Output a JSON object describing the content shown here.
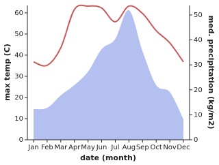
{
  "chart_data": {
    "type": "line",
    "x_label": "date (month)",
    "y_label": "max temp (C)",
    "y2_label": "med. precipitation (kg/m2)",
    "categories": [
      "Jan",
      "Feb",
      "Mar",
      "Apr",
      "May",
      "Jun",
      "Jul",
      "Aug",
      "Sep",
      "Oct",
      "Nov",
      "Dec"
    ],
    "series": [
      {
        "name": "max temp",
        "color": "#c85a5a",
        "values": [
          36.8,
          35.2,
          43.5,
          61.6,
          63.2,
          62.3,
          55.8,
          63.2,
          59.7,
          51.6,
          45.8,
          36.8
        ]
      },
      {
        "name": "med. precipitation",
        "color": "#b3c0f0",
        "axis": "y2",
        "area": true,
        "values": [
          12.3,
          12.8,
          17.8,
          21.9,
          27.3,
          36.3,
          40.4,
          51.9,
          35.5,
          21.9,
          19.1,
          8.2
        ]
      }
    ],
    "ylim": [
      0,
      63.5
    ],
    "yticks": [
      0,
      10,
      20,
      30,
      40,
      50,
      60
    ],
    "y2lim": [
      0,
      53.8
    ],
    "y2ticks": [
      0,
      10,
      20,
      30,
      40,
      50
    ]
  }
}
